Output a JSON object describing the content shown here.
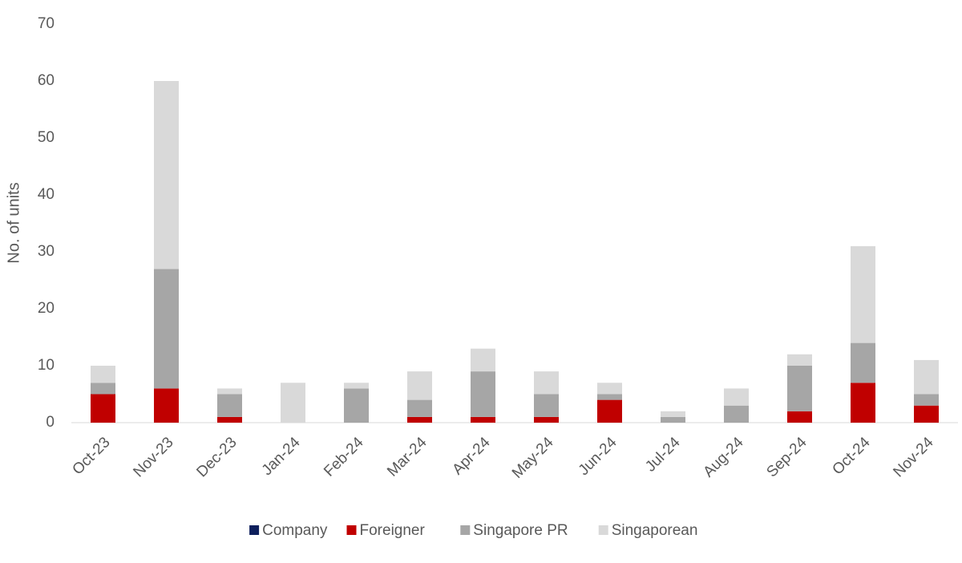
{
  "chart_data": {
    "type": "stacked_bar",
    "y_label": "No. of units",
    "categories": [
      "Oct-23",
      "Nov-23",
      "Dec-23",
      "Jan-24",
      "Feb-24",
      "Mar-24",
      "Apr-24",
      "May-24",
      "Jun-24",
      "Jul-24",
      "Aug-24",
      "Sep-24",
      "Oct-24",
      "Nov-24"
    ],
    "series": [
      {
        "name": "Company",
        "color": "#0d1f5c",
        "values": [
          0,
          0,
          0,
          0,
          0,
          0,
          0,
          0,
          0,
          0,
          0,
          0,
          0,
          0
        ]
      },
      {
        "name": "Foreigner",
        "color": "#c00000",
        "values": [
          5,
          6,
          1,
          0,
          0,
          1,
          1,
          1,
          4,
          0,
          0,
          2,
          7,
          3
        ]
      },
      {
        "name": "Singapore PR",
        "color": "#a6a6a6",
        "values": [
          2,
          21,
          4,
          0,
          6,
          3,
          8,
          4,
          1,
          1,
          3,
          8,
          7,
          2
        ]
      },
      {
        "name": "Singaporean",
        "color": "#d9d9d9",
        "values": [
          3,
          33,
          1,
          7,
          1,
          5,
          4,
          4,
          2,
          1,
          3,
          2,
          17,
          6
        ]
      }
    ],
    "ylim": [
      0,
      70
    ],
    "yticks": [
      0,
      10,
      20,
      30,
      40,
      50,
      60,
      70
    ],
    "grid": false,
    "legend": "bottom"
  }
}
